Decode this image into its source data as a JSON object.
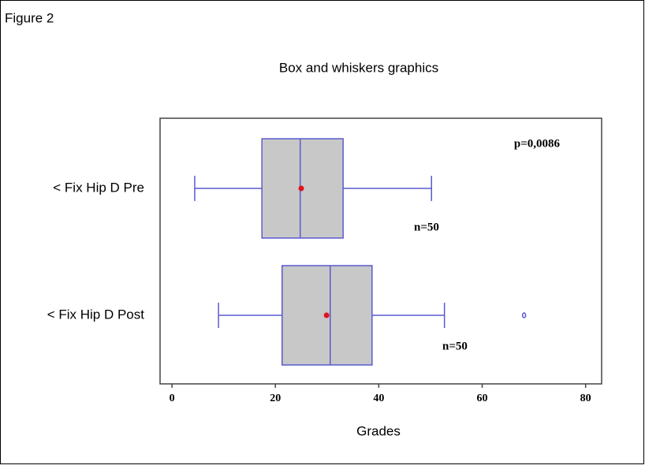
{
  "figure_label": "Figure 2",
  "chart_data": {
    "type": "box",
    "title": "Box and whiskers graphics",
    "x_label": "Grades",
    "categories": [
      "< Fix Hip D Pre",
      "< Fix Hip D Post"
    ],
    "boxes": [
      {
        "whislo": 4.4,
        "q1": 17.4,
        "med": 24.8,
        "mean": 25,
        "q3": 33.1,
        "whishi": 50.2,
        "fliers": [],
        "n_label": "n=50"
      },
      {
        "whislo": 9.0,
        "q1": 21.3,
        "med": 30.6,
        "mean": 29.9,
        "q3": 38.7,
        "whishi": 52.7,
        "fliers": [
          68.1
        ],
        "n_label": "n=50"
      }
    ],
    "annotation": "p=0,0086",
    "box_color": "#c8c8c8",
    "line_color": "#5a5ad0",
    "mean_color": "#e0141e",
    "xlim": [
      -2.3,
      83.1
    ],
    "xticks": [
      0,
      20,
      40,
      60,
      80
    ]
  }
}
